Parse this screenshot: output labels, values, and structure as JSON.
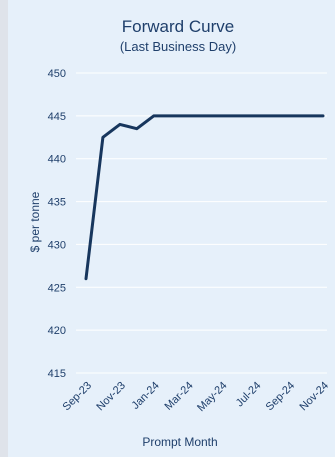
{
  "colors": {
    "background": "#dfe3ea",
    "panel": "#e6f0fa",
    "line": "#17365d",
    "text": "#1f3f6b",
    "grid": "#ffffff"
  },
  "chart_data": {
    "type": "line",
    "title": "Forward Curve",
    "subtitle": "(Last Business Day)",
    "xlabel": "Prompt Month",
    "ylabel": "$ per tonne",
    "ylim": [
      415,
      450
    ],
    "yticks": [
      415,
      420,
      425,
      430,
      435,
      440,
      445,
      450
    ],
    "grid": true,
    "legend": "none",
    "xtick_labels": [
      "Sep-23",
      "Nov-23",
      "Jan-24",
      "Mar-24",
      "May-24",
      "Jul-24",
      "Sep-24",
      "Nov-24"
    ],
    "x": [
      "Sep-23",
      "Oct-23",
      "Nov-23",
      "Dec-23",
      "Jan-24",
      "Feb-24",
      "Mar-24",
      "Apr-24",
      "May-24",
      "Jun-24",
      "Jul-24",
      "Aug-24",
      "Sep-24",
      "Oct-24",
      "Nov-24"
    ],
    "series": [
      {
        "values": [
          426,
          442.5,
          444,
          443.5,
          445,
          445,
          445,
          445,
          445,
          445,
          445,
          445,
          445,
          445,
          445
        ]
      }
    ]
  }
}
